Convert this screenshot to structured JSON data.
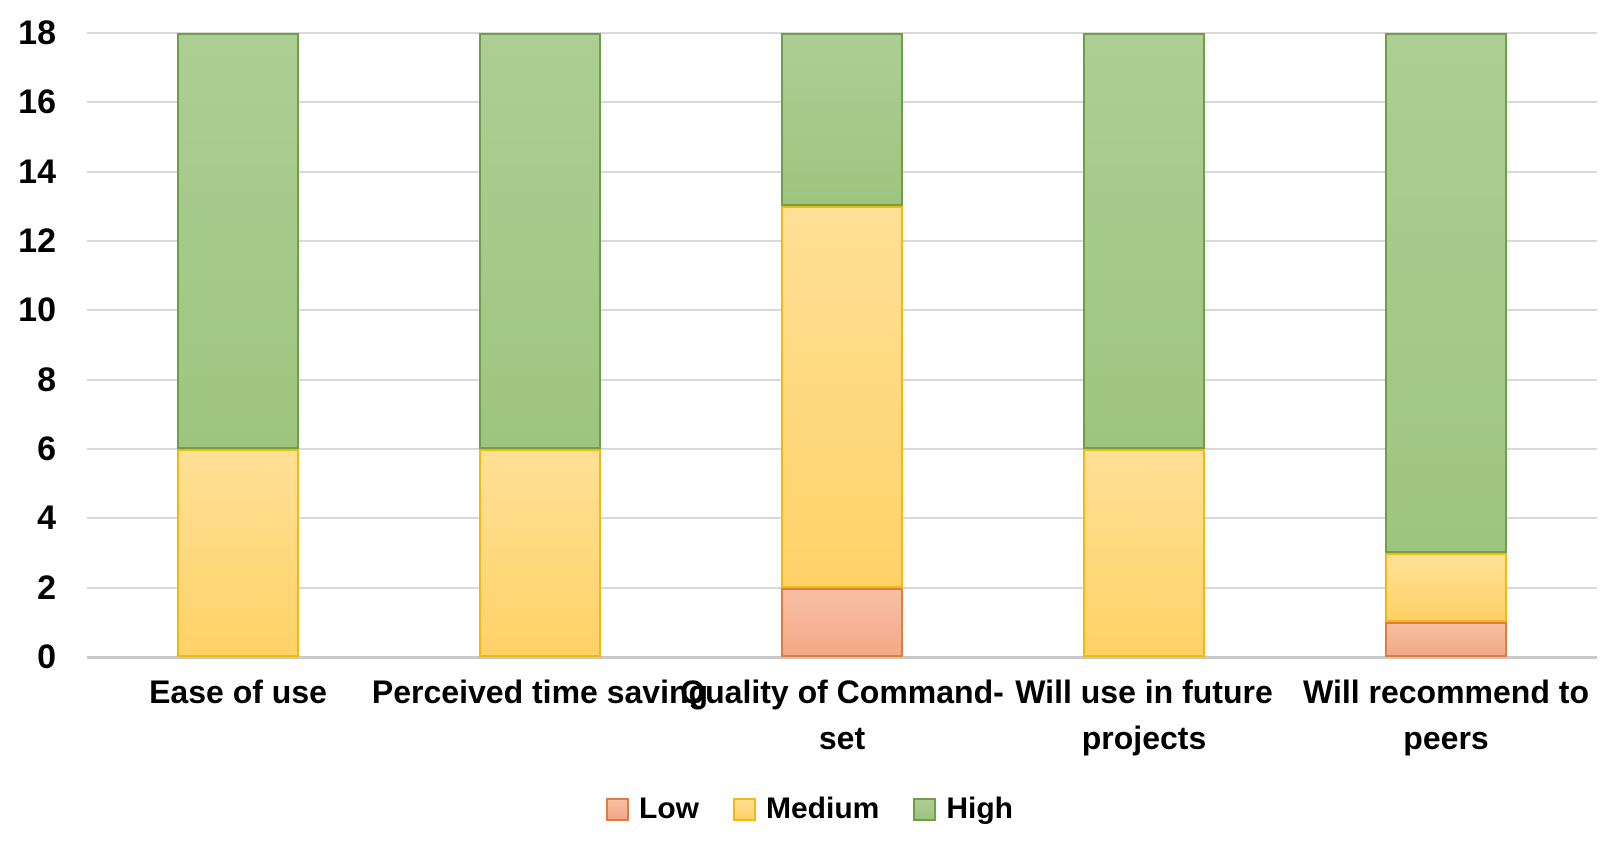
{
  "chart_data": {
    "type": "bar",
    "stacked": true,
    "title": "",
    "xlabel": "",
    "ylabel": "",
    "categories": [
      "Ease of use",
      "Perceived time saving",
      "Quality of Command-set",
      "Will use in future projects",
      "Will recommend to peers"
    ],
    "series": [
      {
        "name": "Low",
        "values": [
          0,
          0,
          2,
          0,
          1
        ]
      },
      {
        "name": "Medium",
        "values": [
          6,
          6,
          11,
          6,
          2
        ]
      },
      {
        "name": "High",
        "values": [
          12,
          12,
          5,
          12,
          15
        ]
      }
    ],
    "ylim": [
      0,
      18
    ],
    "yticks": [
      0,
      2,
      4,
      6,
      8,
      10,
      12,
      14,
      16,
      18
    ],
    "grid": true,
    "legend_position": "bottom",
    "legend_labels": [
      "Low",
      "Medium",
      "High"
    ],
    "colors": {
      "Low": {
        "fill": "#F3AA88",
        "fill_light": "#F7BFA3",
        "border": "#E07C3C"
      },
      "Medium": {
        "fill": "#FFD268",
        "fill_light": "#FFE096",
        "border": "#F0BA11"
      },
      "High": {
        "fill": "#9EC57F",
        "fill_light": "#ADCE94",
        "border": "#6E9F47"
      }
    },
    "gridline_color": "#D9D9D9",
    "axis_line_color": "#C8C8C8",
    "text_color": "#000000",
    "background": "#FFFFFF"
  }
}
